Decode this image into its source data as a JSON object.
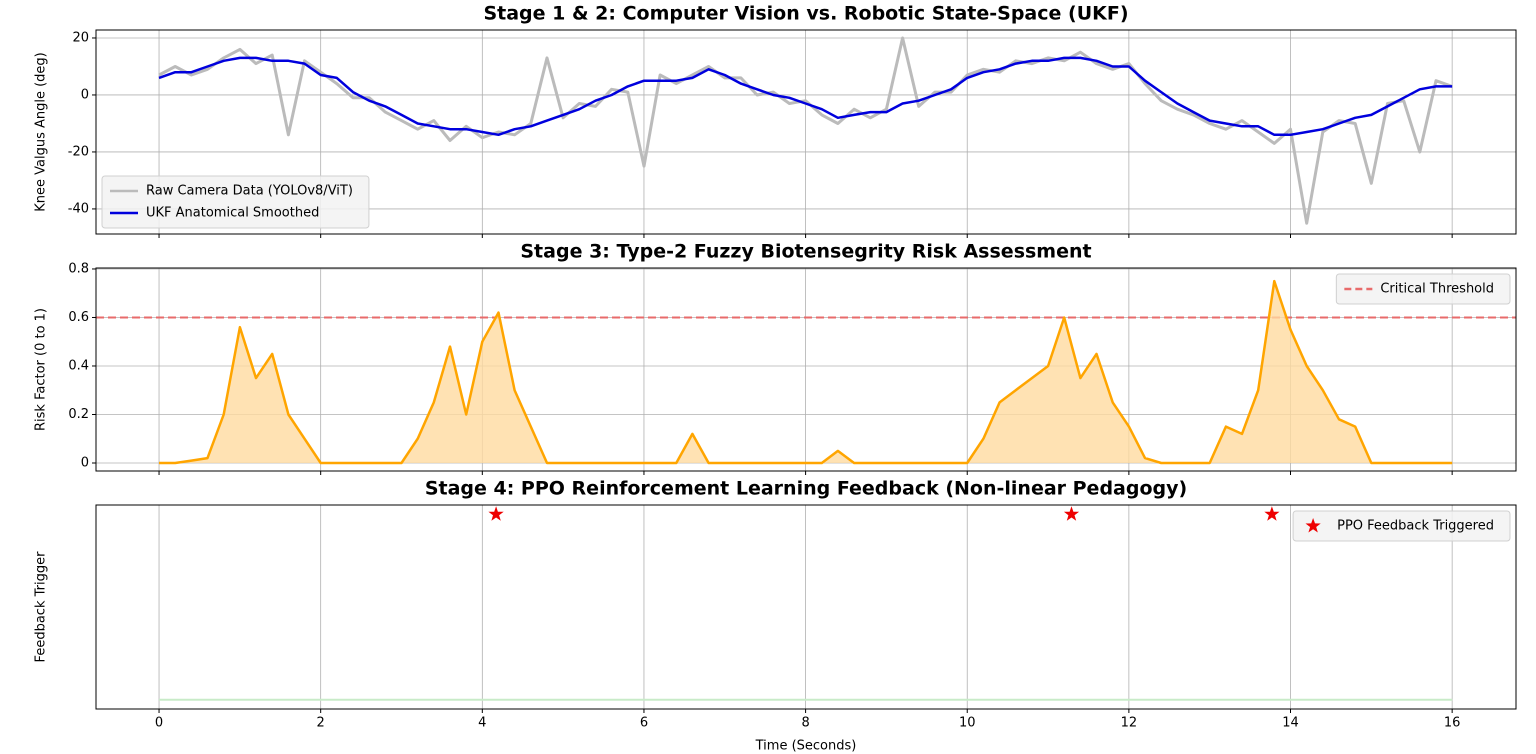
{
  "chart_data": [
    {
      "type": "line",
      "title": "Stage 1 & 2: Computer Vision vs. Robotic State-Space (UKF)",
      "ylabel": "Knee Valgus Angle (deg)",
      "x": [
        0,
        0.2,
        0.4,
        0.6,
        0.8,
        1,
        1.2,
        1.4,
        1.6,
        1.8,
        2,
        2.2,
        2.4,
        2.6,
        2.8,
        3,
        3.2,
        3.4,
        3.6,
        3.8,
        4,
        4.2,
        4.4,
        4.6,
        4.8,
        5,
        5.2,
        5.4,
        5.6,
        5.8,
        6,
        6.2,
        6.4,
        6.6,
        6.8,
        7,
        7.2,
        7.4,
        7.6,
        7.8,
        8,
        8.2,
        8.4,
        8.6,
        8.8,
        9,
        9.2,
        9.4,
        9.6,
        9.8,
        10,
        10.2,
        10.4,
        10.6,
        10.8,
        11,
        11.2,
        11.4,
        11.6,
        11.8,
        12,
        12.2,
        12.4,
        12.6,
        12.8,
        13,
        13.2,
        13.4,
        13.6,
        13.8,
        14,
        14.2,
        14.4,
        14.6,
        14.8,
        15,
        15.2,
        15.4,
        15.6,
        15.8,
        16
      ],
      "series": [
        {
          "name": "Raw Camera Data (YOLOv8/ViT)",
          "color": "#bbbbbb",
          "width": 3,
          "values": [
            7,
            10,
            7,
            9,
            13,
            16,
            11,
            14,
            -14,
            12,
            8,
            4,
            -1,
            -1,
            -6,
            -9,
            -12,
            -9,
            -16,
            -11,
            -15,
            -13,
            -14,
            -10,
            13,
            -8,
            -3,
            -4,
            2,
            1,
            -25,
            7,
            4,
            7,
            10,
            6,
            6,
            0,
            1,
            -3,
            -2,
            -7,
            -10,
            -5,
            -8,
            -5,
            20,
            -4,
            1,
            1,
            7,
            9,
            8,
            12,
            11,
            13,
            12,
            15,
            11,
            9,
            11,
            4,
            -2,
            -5,
            -7,
            -10,
            -12,
            -9,
            -13,
            -17,
            -12,
            -45,
            -13,
            -9,
            -10,
            -31,
            -3,
            -2,
            -20,
            5,
            3
          ]
        },
        {
          "name": "UKF Anatomical Smoothed",
          "color": "#0000dd",
          "width": 2.5,
          "values": [
            6,
            8,
            8,
            10,
            12,
            13,
            13,
            12,
            12,
            11,
            7,
            6,
            1,
            -2,
            -4,
            -7,
            -10,
            -11,
            -12,
            -12,
            -13,
            -14,
            -12,
            -11,
            -9,
            -7,
            -5,
            -2,
            0,
            3,
            5,
            5,
            5,
            6,
            9,
            7,
            4,
            2,
            0,
            -1,
            -3,
            -5,
            -8,
            -7,
            -6,
            -6,
            -3,
            -2,
            0,
            2,
            6,
            8,
            9,
            11,
            12,
            12,
            13,
            13,
            12,
            10,
            10,
            5,
            1,
            -3,
            -6,
            -9,
            -10,
            -11,
            -11,
            -14,
            -14,
            -13,
            -12,
            -10,
            -8,
            -7,
            -4,
            -1,
            2,
            3,
            3
          ]
        }
      ],
      "xlim": [
        -0.78,
        16.79
      ],
      "xticks": [
        0,
        2,
        4,
        6,
        8,
        10,
        12,
        14,
        16
      ],
      "ylim": [
        -48.8,
        22.8
      ],
      "yticks": [
        -40,
        -20,
        0,
        20
      ],
      "grid": true,
      "legend": "lower left"
    },
    {
      "type": "line",
      "title": "Stage 3: Type-2 Fuzzy Biotensegrity Risk Assessment",
      "ylabel": "Risk Factor (0 to 1)",
      "x": [
        0,
        0.2,
        0.4,
        0.6,
        0.8,
        1,
        1.2,
        1.4,
        1.6,
        1.8,
        2,
        2.2,
        2.4,
        2.6,
        2.8,
        3,
        3.2,
        3.4,
        3.6,
        3.8,
        4,
        4.2,
        4.4,
        4.6,
        4.8,
        5,
        5.2,
        5.4,
        5.6,
        5.8,
        6,
        6.2,
        6.4,
        6.6,
        6.8,
        7,
        7.2,
        7.4,
        7.6,
        7.8,
        8,
        8.2,
        8.4,
        8.6,
        8.8,
        9,
        9.2,
        9.4,
        9.6,
        9.8,
        10,
        10.2,
        10.4,
        10.6,
        10.8,
        11,
        11.2,
        11.4,
        11.6,
        11.8,
        12,
        12.2,
        12.4,
        12.6,
        12.8,
        13,
        13.2,
        13.4,
        13.6,
        13.8,
        14,
        14.2,
        14.4,
        14.6,
        14.8,
        15,
        15.2,
        15.4,
        15.6,
        15.8,
        16
      ],
      "series": [
        {
          "color": "#ffa500",
          "fill": "#ffdba0",
          "width": 2.5,
          "values": [
            0,
            0,
            0.01,
            0.02,
            0.2,
            0.56,
            0.35,
            0.45,
            0.2,
            0.1,
            0,
            0,
            0,
            0,
            0,
            0,
            0.1,
            0.25,
            0.48,
            0.2,
            0.5,
            0.62,
            0.3,
            0.15,
            0,
            0,
            0,
            0,
            0,
            0,
            0,
            0,
            0,
            0.12,
            0,
            0,
            0,
            0,
            0,
            0,
            0,
            0,
            0.05,
            0,
            0,
            0,
            0,
            0,
            0,
            0,
            0,
            0.1,
            0.25,
            0.3,
            0.35,
            0.4,
            0.6,
            0.35,
            0.45,
            0.25,
            0.15,
            0.02,
            0,
            0,
            0,
            0,
            0.15,
            0.12,
            0.3,
            0.75,
            0.55,
            0.4,
            0.3,
            0.18,
            0.15,
            0,
            0,
            0,
            0,
            0,
            0
          ]
        }
      ],
      "hlines": [
        {
          "name": "Critical Threshold",
          "value": 0.6,
          "color": "#e86b6b"
        }
      ],
      "xlim": [
        -0.78,
        16.79
      ],
      "xticks": [
        0,
        2,
        4,
        6,
        8,
        10,
        12,
        14,
        16
      ],
      "ylim": [
        -0.033,
        0.804
      ],
      "yticks": [
        0.0,
        0.2,
        0.4,
        0.6,
        0.8
      ],
      "grid": true,
      "legend": "upper right"
    },
    {
      "type": "scatter",
      "title": "Stage 4: PPO Reinforcement Learning Feedback (Non-linear Pedagogy)",
      "ylabel": "Feedback Trigger",
      "xlabel": "Time (Seconds)",
      "series": [
        {
          "name": "PPO Feedback Triggered",
          "color": "#ee0000",
          "marker": "star",
          "x": [
            4.17,
            11.29,
            13.77
          ],
          "values": [
            1,
            1,
            1
          ]
        },
        {
          "color": "#c8ebc8",
          "marker": "line",
          "x": [
            0,
            16
          ],
          "values": [
            0,
            0
          ]
        }
      ],
      "xlim": [
        -0.78,
        16.79
      ],
      "xticks": [
        0,
        2,
        4,
        6,
        8,
        10,
        12,
        14,
        16
      ],
      "ylim": [
        -0.05,
        1.05
      ],
      "grid": true,
      "legend": "upper right"
    }
  ]
}
